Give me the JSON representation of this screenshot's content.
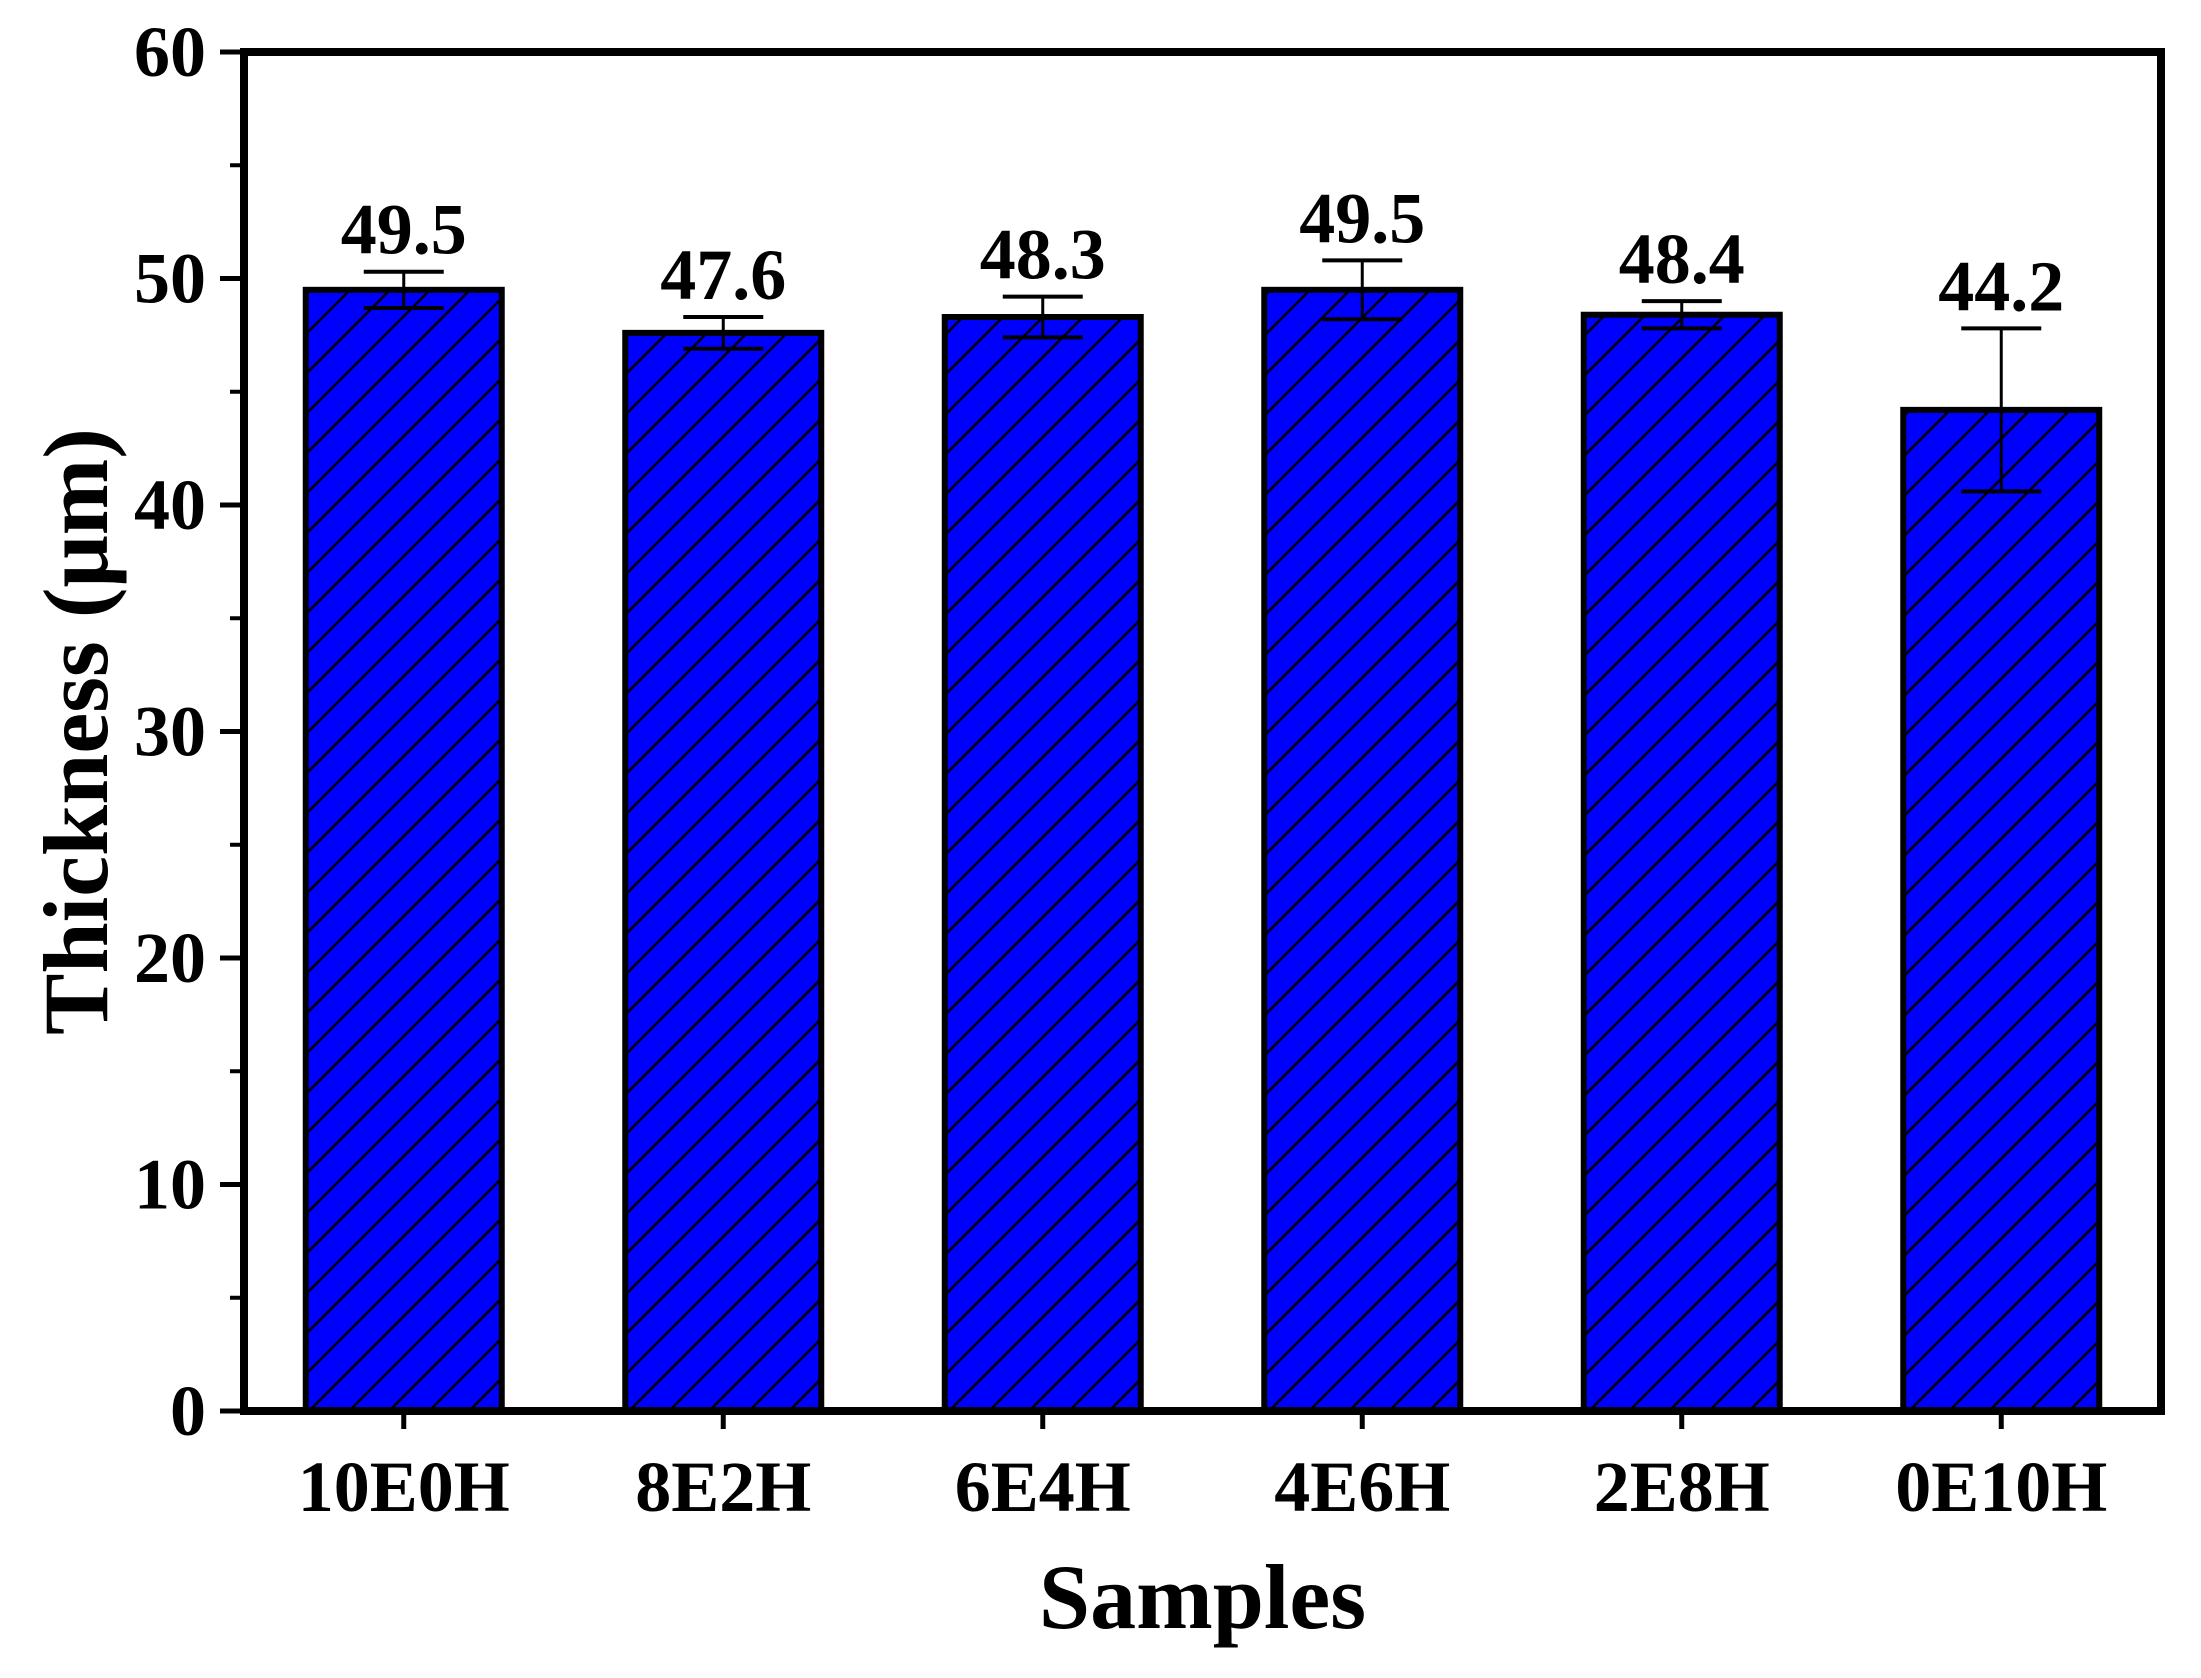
{
  "chart_data": {
    "type": "bar",
    "categories": [
      "10E0H",
      "8E2H",
      "6E4H",
      "4E6H",
      "2E8H",
      "0E10H"
    ],
    "values": [
      49.5,
      47.6,
      48.3,
      49.5,
      48.4,
      44.2
    ],
    "errors": [
      0.8,
      0.7,
      0.9,
      1.3,
      0.6,
      3.6
    ],
    "value_labels": [
      "49.5",
      "47.6",
      "48.3",
      "49.5",
      "48.4",
      "44.2"
    ],
    "xlabel": "Samples",
    "ylabel": "Thickness (μm)",
    "ylim": [
      0,
      60
    ],
    "yticks": [
      "0",
      "10",
      "20",
      "30",
      "40",
      "50",
      "60"
    ],
    "grid": false,
    "legend": "none",
    "bar_color": "#0000ff",
    "bar_edge_color": "#000000",
    "hatch": "diagonal"
  }
}
